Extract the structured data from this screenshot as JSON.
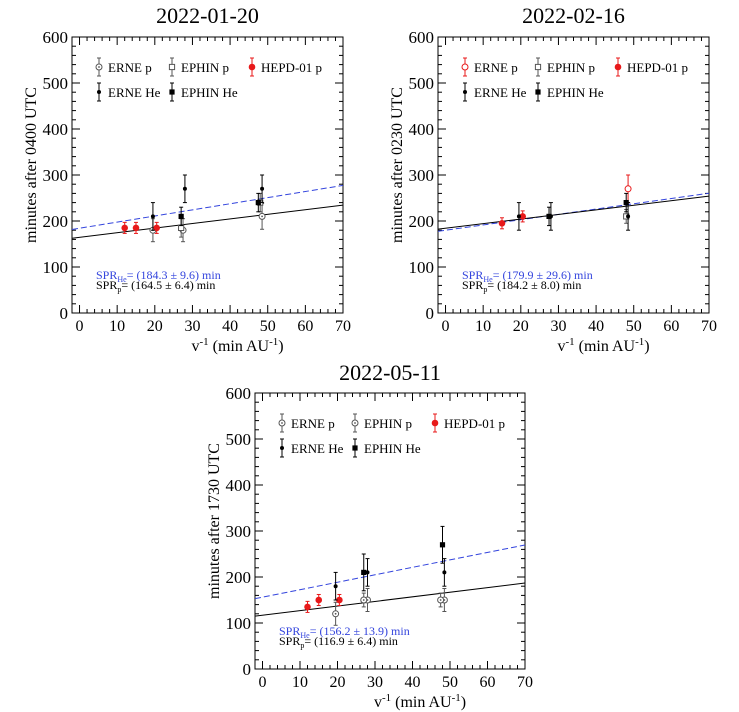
{
  "colors": {
    "blue": "#3344dd",
    "black": "#000000",
    "red": "#e8191a",
    "gray": "#666666"
  },
  "chart_data": [
    {
      "type": "scatter",
      "title": "2022-01-20",
      "xlabel_main": "v",
      "xlabel_sup": "-1",
      "xlabel_unit": " (min AU",
      "xlabel_unit_sup": "-1",
      "xlabel_close": ")",
      "ylabel": "minutes after 0400 UTC",
      "xlim": [
        -2,
        70
      ],
      "ylim": [
        0,
        600
      ],
      "xticks": [
        0,
        10,
        20,
        30,
        40,
        50,
        60,
        70
      ],
      "yticks": [
        0,
        100,
        200,
        300,
        400,
        500,
        600
      ],
      "legend": [
        {
          "label": "ERNE p",
          "series": "erne_p"
        },
        {
          "label": "EPHIN p",
          "series": "ephin_p"
        },
        {
          "label": "HEPD-01 p",
          "series": "hepd_p"
        },
        {
          "label": "ERNE He",
          "series": "erne_he"
        },
        {
          "label": "EPHIN He",
          "series": "ephin_he"
        }
      ],
      "series": [
        {
          "key": "erne_p",
          "name": "ERNE p",
          "marker": "open-circle-dot",
          "color": "#555555",
          "points": [
            {
              "x": 19.5,
              "y": 180,
              "err": 25
            },
            {
              "x": 27.5,
              "y": 180,
              "err": 25
            },
            {
              "x": 48.5,
              "y": 210,
              "err": 28
            }
          ]
        },
        {
          "key": "ephin_p",
          "name": "EPHIN p",
          "marker": "open-square",
          "color": "#555555",
          "points": [
            {
              "x": 27,
              "y": 185,
              "err": 20
            },
            {
              "x": 48,
              "y": 240,
              "err": 20
            }
          ]
        },
        {
          "key": "hepd_p",
          "name": "HEPD-01 p",
          "marker": "filled-circle",
          "color": "#e8191a",
          "points": [
            {
              "x": 12,
              "y": 185,
              "err": 12
            },
            {
              "x": 15,
              "y": 185,
              "err": 12
            },
            {
              "x": 20.5,
              "y": 185,
              "err": 12
            }
          ]
        },
        {
          "key": "erne_he",
          "name": "ERNE He",
          "marker": "small-dot",
          "color": "#000000",
          "points": [
            {
              "x": 19.5,
              "y": 210,
              "err": 30
            },
            {
              "x": 28,
              "y": 270,
              "err": 30
            },
            {
              "x": 48.5,
              "y": 270,
              "err": 30
            }
          ]
        },
        {
          "key": "ephin_he",
          "name": "EPHIN He",
          "marker": "filled-square",
          "color": "#000000",
          "points": [
            {
              "x": 27,
              "y": 210,
              "err": 20
            },
            {
              "x": 47.5,
              "y": 240,
              "err": 20
            }
          ]
        }
      ],
      "fits": [
        {
          "name": "He fit",
          "color": "#3344dd",
          "dashed": true,
          "y0": 184.3,
          "slope": 1.33
        },
        {
          "name": "p fit",
          "color": "#000000",
          "dashed": false,
          "y0": 164.5,
          "slope": 1.0
        }
      ],
      "annotations": [
        {
          "prefix": "SPR",
          "sub": "He",
          "text": "= (184.3 ± 9.6) min",
          "color": "#3344dd"
        },
        {
          "prefix": "SPR",
          "sub": "p",
          "text": "= (164.5 ± 6.4) min",
          "color": "#000000"
        }
      ]
    },
    {
      "type": "scatter",
      "title": "2022-02-16",
      "xlabel_main": "v",
      "xlabel_sup": "-1",
      "xlabel_unit": " (min AU",
      "xlabel_unit_sup": "-1",
      "xlabel_close": ")",
      "ylabel": "minutes after 0230 UTC",
      "xlim": [
        -2,
        70
      ],
      "ylim": [
        0,
        600
      ],
      "xticks": [
        0,
        10,
        20,
        30,
        40,
        50,
        60,
        70
      ],
      "yticks": [
        0,
        100,
        200,
        300,
        400,
        500,
        600
      ],
      "legend": [
        {
          "label": "ERNE p",
          "series": "erne_p"
        },
        {
          "label": "EPHIN p",
          "series": "ephin_p"
        },
        {
          "label": "HEPD-01 p",
          "series": "hepd_p"
        },
        {
          "label": "ERNE He",
          "series": "erne_he"
        },
        {
          "label": "EPHIN He",
          "series": "ephin_he"
        }
      ],
      "series": [
        {
          "key": "erne_p",
          "name": "ERNE p",
          "marker": "open-circle-red",
          "color": "#e8191a",
          "points": [
            {
              "x": 48.5,
              "y": 270,
              "err": 30
            }
          ]
        },
        {
          "key": "ephin_p",
          "name": "EPHIN p",
          "marker": "open-square",
          "color": "#555555",
          "points": [
            {
              "x": 48,
              "y": 210,
              "err": 15
            }
          ]
        },
        {
          "key": "hepd_p",
          "name": "HEPD-01 p",
          "marker": "filled-circle",
          "color": "#e8191a",
          "points": [
            {
              "x": 15,
              "y": 195,
              "err": 12
            },
            {
              "x": 20.5,
              "y": 210,
              "err": 12
            }
          ]
        },
        {
          "key": "erne_he",
          "name": "ERNE He",
          "marker": "small-dot",
          "color": "#000000",
          "points": [
            {
              "x": 19.5,
              "y": 210,
              "err": 30
            },
            {
              "x": 28,
              "y": 210,
              "err": 30
            },
            {
              "x": 48.5,
              "y": 210,
              "err": 30
            }
          ]
        },
        {
          "key": "ephin_he",
          "name": "EPHIN He",
          "marker": "filled-square",
          "color": "#000000",
          "points": [
            {
              "x": 27.5,
              "y": 210,
              "err": 20
            },
            {
              "x": 48,
              "y": 240,
              "err": 20
            }
          ]
        }
      ],
      "fits": [
        {
          "name": "He fit",
          "color": "#3344dd",
          "dashed": true,
          "y0": 179.9,
          "slope": 1.15
        },
        {
          "name": "p fit",
          "color": "#000000",
          "dashed": false,
          "y0": 184.2,
          "slope": 1.0
        }
      ],
      "annotations": [
        {
          "prefix": "SPR",
          "sub": "He",
          "text": "= (179.9 ± 29.6) min",
          "color": "#3344dd"
        },
        {
          "prefix": "SPR",
          "sub": "p",
          "text": "= (184.2 ± 8.0) min",
          "color": "#000000"
        }
      ]
    },
    {
      "type": "scatter",
      "title": "2022-05-11",
      "xlabel_main": "v",
      "xlabel_sup": "-1",
      "xlabel_unit": " (min AU",
      "xlabel_unit_sup": "-1",
      "xlabel_close": ")",
      "ylabel": "minutes after 1730 UTC",
      "xlim": [
        -2,
        70
      ],
      "ylim": [
        0,
        600
      ],
      "xticks": [
        0,
        10,
        20,
        30,
        40,
        50,
        60,
        70
      ],
      "yticks": [
        0,
        100,
        200,
        300,
        400,
        500,
        600
      ],
      "legend": [
        {
          "label": "ERNE p",
          "series": "erne_p"
        },
        {
          "label": "EPHIN p",
          "series": "ephin_p"
        },
        {
          "label": "HEPD-01 p",
          "series": "hepd_p"
        },
        {
          "label": "ERNE He",
          "series": "erne_he"
        },
        {
          "label": "EPHIN He",
          "series": "ephin_he"
        }
      ],
      "series": [
        {
          "key": "erne_p",
          "name": "ERNE p",
          "marker": "open-circle-dot",
          "color": "#555555",
          "points": [
            {
              "x": 19.5,
              "y": 120,
              "err": 25
            },
            {
              "x": 28,
              "y": 150,
              "err": 25
            },
            {
              "x": 48.5,
              "y": 150,
              "err": 25
            }
          ]
        },
        {
          "key": "ephin_p",
          "name": "EPHIN p",
          "marker": "open-circle-dot",
          "color": "#555555",
          "points": [
            {
              "x": 27,
              "y": 150,
              "err": 15
            },
            {
              "x": 47.5,
              "y": 150,
              "err": 15
            }
          ]
        },
        {
          "key": "hepd_p",
          "name": "HEPD-01 p",
          "marker": "filled-circle",
          "color": "#e8191a",
          "points": [
            {
              "x": 12,
              "y": 135,
              "err": 12
            },
            {
              "x": 15,
              "y": 150,
              "err": 12
            },
            {
              "x": 20.5,
              "y": 150,
              "err": 12
            }
          ]
        },
        {
          "key": "erne_he",
          "name": "ERNE He",
          "marker": "small-dot",
          "color": "#000000",
          "points": [
            {
              "x": 19.5,
              "y": 180,
              "err": 30
            },
            {
              "x": 28,
              "y": 210,
              "err": 30
            },
            {
              "x": 48.5,
              "y": 210,
              "err": 30
            }
          ]
        },
        {
          "key": "ephin_he",
          "name": "EPHIN He",
          "marker": "filled-square",
          "color": "#000000",
          "points": [
            {
              "x": 27,
              "y": 210,
              "err": 40
            },
            {
              "x": 48,
              "y": 270,
              "err": 40
            }
          ]
        }
      ],
      "fits": [
        {
          "name": "He fit",
          "color": "#3344dd",
          "dashed": true,
          "y0": 156.2,
          "slope": 1.62
        },
        {
          "name": "p fit",
          "color": "#000000",
          "dashed": false,
          "y0": 116.9,
          "slope": 1.0
        }
      ],
      "annotations": [
        {
          "prefix": "SPR",
          "sub": "He",
          "text": "= (156.2 ± 13.9) min",
          "color": "#3344dd"
        },
        {
          "prefix": "SPR",
          "sub": "p",
          "text": "= (116.9 ± 6.4) min",
          "color": "#000000"
        }
      ]
    }
  ]
}
